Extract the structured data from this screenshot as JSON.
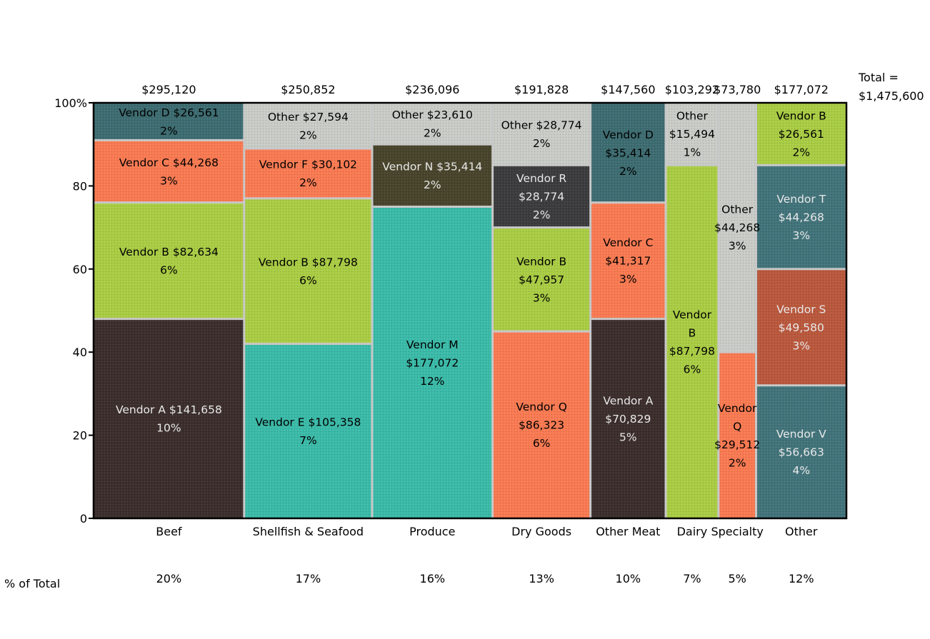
{
  "chart_data": {
    "type": "marimekko",
    "total_label": "Total =",
    "total_value": "$1,475,600",
    "row_label": "% of Total",
    "y_ticks": [
      "0",
      "20",
      "40",
      "60",
      "80",
      "100%"
    ],
    "ylim": [
      0,
      100
    ],
    "colors": {
      "dark_brown": "#3b2e2c",
      "green": "#a9cc44",
      "orange": "#f87a52",
      "teal_dark": "#3d6c71",
      "teal": "#3bbaa8",
      "other_gray": "#c9ccc6",
      "olive_dark": "#48442c",
      "charcoal": "#3c3c3e",
      "steel": "#42737a",
      "rust": "#b9583d",
      "frame": "#000000",
      "divider": "#c8c8c8"
    },
    "categories": [
      {
        "name": "Beef",
        "total": "$295,120",
        "share": 20,
        "share_label": "20%",
        "segments": [
          {
            "name": "Vendor A",
            "value": 141658,
            "value_label": "$141,658",
            "pct_label": "10%",
            "from": 0,
            "to": 48,
            "color": "dark_brown",
            "lines": [
              "Vendor A $141,658",
              "10%"
            ],
            "light": true
          },
          {
            "name": "Vendor B",
            "value": 82634,
            "value_label": "$82,634",
            "pct_label": "6%",
            "from": 48,
            "to": 76,
            "color": "green",
            "lines": [
              "Vendor B $82,634",
              "6%"
            ],
            "light": false
          },
          {
            "name": "Vendor C",
            "value": 44268,
            "value_label": "$44,268",
            "pct_label": "3%",
            "from": 76,
            "to": 91,
            "color": "orange",
            "lines": [
              "Vendor C $44,268",
              "3%"
            ],
            "light": false
          },
          {
            "name": "Vendor D",
            "value": 26561,
            "value_label": "$26,561",
            "pct_label": "2%",
            "from": 91,
            "to": 100,
            "color": "teal_dark",
            "lines": [
              "Vendor D $26,561",
              "2%"
            ],
            "light": false
          }
        ]
      },
      {
        "name": "Shellfish & Seafood",
        "total": "$250,852",
        "share": 17,
        "share_label": "17%",
        "segments": [
          {
            "name": "Vendor E",
            "value": 105358,
            "value_label": "$105,358",
            "pct_label": "7%",
            "from": 0,
            "to": 42,
            "color": "teal",
            "lines": [
              "Vendor E $105,358",
              "7%"
            ],
            "light": false
          },
          {
            "name": "Vendor B",
            "value": 87798,
            "value_label": "$87,798",
            "pct_label": "6%",
            "from": 42,
            "to": 77,
            "color": "green",
            "lines": [
              "Vendor B $87,798",
              "6%"
            ],
            "light": false
          },
          {
            "name": "Vendor F",
            "value": 30102,
            "value_label": "$30,102",
            "pct_label": "2%",
            "from": 77,
            "to": 89,
            "color": "orange",
            "lines": [
              "Vendor F $30,102",
              "2%"
            ],
            "light": false
          },
          {
            "name": "Other",
            "value": 27594,
            "value_label": "$27,594",
            "pct_label": "2%",
            "from": 89,
            "to": 100,
            "color": "other_gray",
            "lines": [
              "Other $27,594",
              "2%"
            ],
            "light": false
          }
        ]
      },
      {
        "name": "Produce",
        "total": "$236,096",
        "share": 16,
        "share_label": "16%",
        "segments": [
          {
            "name": "Vendor M",
            "value": 177072,
            "value_label": "$177,072",
            "pct_label": "12%",
            "from": 0,
            "to": 75,
            "color": "teal",
            "lines": [
              "Vendor M",
              "$177,072",
              "12%"
            ],
            "light": false
          },
          {
            "name": "Vendor N",
            "value": 35414,
            "value_label": "$35,414",
            "pct_label": "2%",
            "from": 75,
            "to": 90,
            "color": "olive_dark",
            "lines": [
              "Vendor N $35,414",
              "2%"
            ],
            "light": true
          },
          {
            "name": "Other",
            "value": 23610,
            "value_label": "$23,610",
            "pct_label": "2%",
            "from": 90,
            "to": 100,
            "color": "other_gray",
            "lines": [
              "Other $23,610",
              "2%"
            ],
            "light": false
          }
        ]
      },
      {
        "name": "Dry Goods",
        "total": "$191,828",
        "share": 13,
        "share_label": "13%",
        "segments": [
          {
            "name": "Vendor Q",
            "value": 86323,
            "value_label": "$86,323",
            "pct_label": "6%",
            "from": 0,
            "to": 45,
            "color": "orange",
            "lines": [
              "Vendor Q",
              "$86,323",
              "6%"
            ],
            "light": false
          },
          {
            "name": "Vendor B",
            "value": 47957,
            "value_label": "$47,957",
            "pct_label": "3%",
            "from": 45,
            "to": 70,
            "color": "green",
            "lines": [
              "Vendor B",
              "$47,957",
              "3%"
            ],
            "light": false
          },
          {
            "name": "Vendor R",
            "value": 28774,
            "value_label": "$28,774",
            "pct_label": "2%",
            "from": 70,
            "to": 85,
            "color": "charcoal",
            "lines": [
              "Vendor R",
              "$28,774",
              "2%"
            ],
            "light": true
          },
          {
            "name": "Other",
            "value": 28774,
            "value_label": "$28,774",
            "pct_label": "2%",
            "from": 85,
            "to": 100,
            "color": "other_gray",
            "lines": [
              "Other $28,774",
              "2%"
            ],
            "light": false
          }
        ]
      },
      {
        "name": "Other Meat",
        "total": "$147,560",
        "share": 10,
        "share_label": "10%",
        "segments": [
          {
            "name": "Vendor A",
            "value": 70829,
            "value_label": "$70,829",
            "pct_label": "5%",
            "from": 0,
            "to": 48,
            "color": "dark_brown",
            "lines": [
              "Vendor A",
              "$70,829",
              "5%"
            ],
            "light": true
          },
          {
            "name": "Vendor C",
            "value": 41317,
            "value_label": "$41,317",
            "pct_label": "3%",
            "from": 48,
            "to": 76,
            "color": "orange",
            "lines": [
              "Vendor C",
              "$41,317",
              "3%"
            ],
            "light": false
          },
          {
            "name": "Vendor D",
            "value": 35414,
            "value_label": "$35,414",
            "pct_label": "2%",
            "from": 76,
            "to": 100,
            "color": "teal_dark",
            "lines": [
              "Vendor D",
              "$35,414",
              "2%"
            ],
            "light": false
          }
        ]
      },
      {
        "name": "Dairy",
        "total": "$103,292",
        "share": 7,
        "share_label": "7%",
        "segments": [
          {
            "name": "Vendor B",
            "value": 87798,
            "value_label": "$87,798",
            "pct_label": "6%",
            "from": 0,
            "to": 85,
            "color": "green",
            "lines": [
              "Vendor",
              "B",
              "$87,798",
              "6%"
            ],
            "light": false
          },
          {
            "name": "Other",
            "value": 15494,
            "value_label": "$15,494",
            "pct_label": "1%",
            "from": 85,
            "to": 100,
            "color": "other_gray",
            "lines": [
              "Other",
              "$15,494",
              "1%"
            ],
            "light": false
          }
        ]
      },
      {
        "name": "Specialty",
        "total": "$73,780",
        "share": 5,
        "share_label": "5%",
        "segments": [
          {
            "name": "Vendor Q",
            "value": 29512,
            "value_label": "$29,512",
            "pct_label": "2%",
            "from": 0,
            "to": 40,
            "color": "orange",
            "lines": [
              "Vendor",
              "Q",
              "$29,512",
              "2%"
            ],
            "light": false
          },
          {
            "name": "Other",
            "value": 44268,
            "value_label": "$44,268",
            "pct_label": "3%",
            "from": 40,
            "to": 100,
            "color": "other_gray",
            "lines": [
              "Other",
              "$44,268",
              "3%"
            ],
            "light": false
          }
        ]
      },
      {
        "name": "Other",
        "total": "$177,072",
        "share": 12,
        "share_label": "12%",
        "segments": [
          {
            "name": "Vendor V",
            "value": 56663,
            "value_label": "$56,663",
            "pct_label": "4%",
            "from": 0,
            "to": 32,
            "color": "steel",
            "lines": [
              "Vendor V",
              "$56,663",
              "4%"
            ],
            "light": true
          },
          {
            "name": "Vendor S",
            "value": 49580,
            "value_label": "$49,580",
            "pct_label": "3%",
            "from": 32,
            "to": 60,
            "color": "rust",
            "lines": [
              "Vendor S",
              "$49,580",
              "3%"
            ],
            "light": true
          },
          {
            "name": "Vendor T",
            "value": 44268,
            "value_label": "$44,268",
            "pct_label": "3%",
            "from": 60,
            "to": 85,
            "color": "steel",
            "lines": [
              "Vendor T",
              "$44,268",
              "3%"
            ],
            "light": true
          },
          {
            "name": "Vendor B",
            "value": 26561,
            "value_label": "$26,561",
            "pct_label": "2%",
            "from": 85,
            "to": 100,
            "color": "green",
            "lines": [
              "Vendor B",
              "$26,561",
              "2%"
            ],
            "light": false
          }
        ]
      }
    ]
  }
}
